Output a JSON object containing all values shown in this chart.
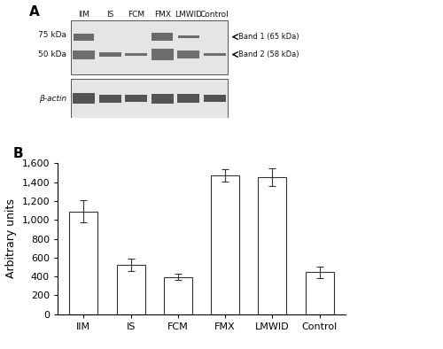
{
  "panel_A_label": "A",
  "panel_B_label": "B",
  "categories": [
    "IIM",
    "IS",
    "FCM",
    "FMX",
    "LMWID",
    "Control"
  ],
  "values": [
    1090,
    525,
    395,
    1470,
    1455,
    445
  ],
  "errors": [
    115,
    65,
    35,
    65,
    95,
    60
  ],
  "ylabel": "Arbitrary units",
  "ylim": [
    0,
    1600
  ],
  "yticks": [
    0,
    200,
    400,
    600,
    800,
    1000,
    1200,
    1400,
    1600
  ],
  "ytick_labels": [
    "0",
    "200",
    "400",
    "600",
    "800",
    "1,000",
    "1,200",
    "1,400",
    "1,600"
  ],
  "bar_color": "#ffffff",
  "bar_edgecolor": "#333333",
  "bar_linewidth": 0.8,
  "error_color": "#333333",
  "blot_bg": "#d0d0d0",
  "band1_label": "Band 1 (65 kDa)",
  "band2_label": "Band 2 (58 kDa)",
  "kda75_label": "75 kDa",
  "kda50_label": "50 kDa",
  "bactin_label": "β-actin",
  "col_labels": [
    "IIM",
    "IS",
    "FCM",
    "FMX",
    "LMWID",
    "Control"
  ],
  "figure_bg": "#ffffff",
  "fontsize_tick": 8,
  "fontsize_label": 9,
  "fontsize_panel": 11
}
